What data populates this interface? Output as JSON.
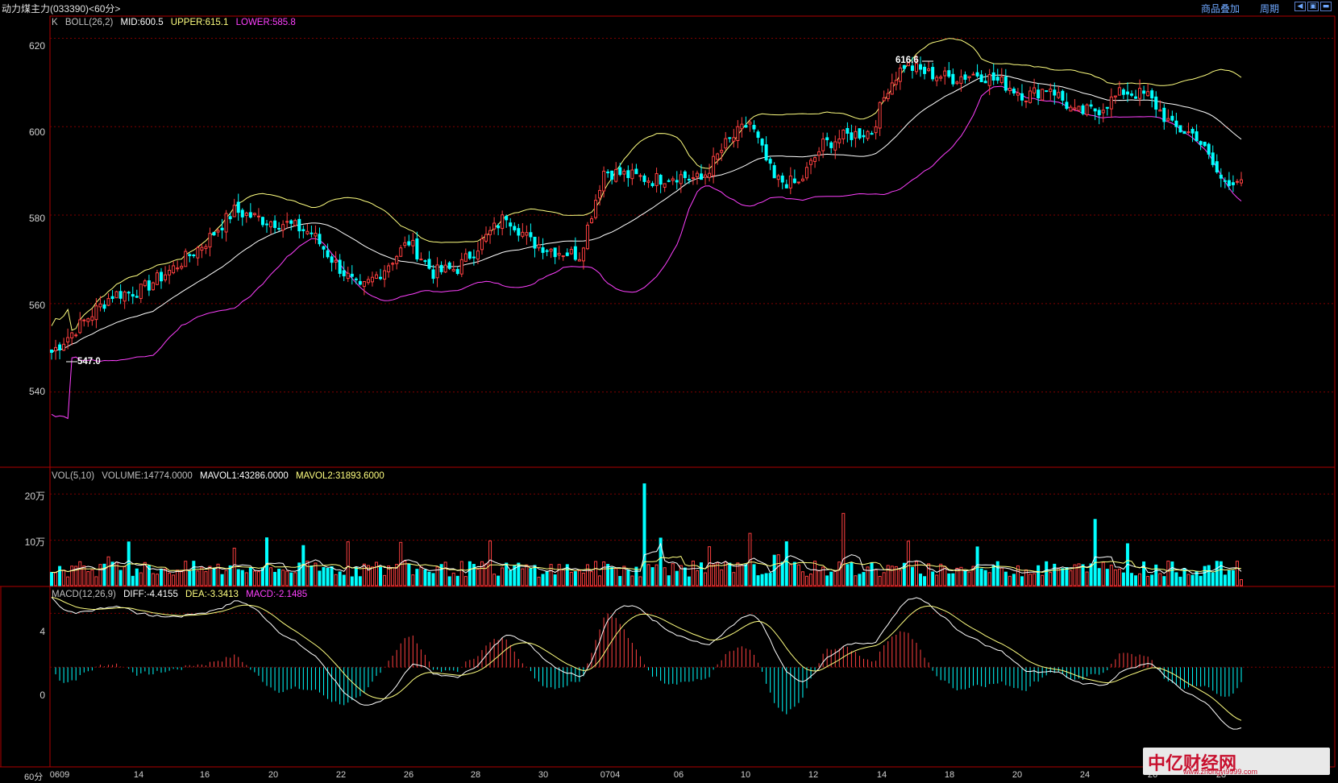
{
  "title": {
    "instrument": "动力煤主力",
    "code": "(033390)",
    "period": "<60分>"
  },
  "toolbar": {
    "overlay_label": "商品叠加",
    "period_label": "周期"
  },
  "colors": {
    "up": "#ff4040",
    "down": "#00ffff",
    "mid": "#ffffff",
    "upper": "#ffff80",
    "lower": "#ff40ff",
    "grid": "#800000",
    "frame": "#b00000"
  },
  "main_panel": {
    "k_label": "K",
    "boll_label": "BOLL(26,2)",
    "mid": "MID:600.5",
    "upper": "UPPER:615.1",
    "lower": "LOWER:585.8",
    "high_marker": "616.6",
    "low_marker": "547.0"
  },
  "volume_panel": {
    "label": "VOL(5,10)",
    "volume": "VOLUME:14774.0000",
    "mavol1": "MAVOL1:43286.0000",
    "mavol2": "MAVOL2:31893.6000",
    "tick_20": "20万",
    "tick_10": "10万"
  },
  "macd_panel": {
    "label": "MACD(12,26,9)",
    "diff": "DIFF:-4.4155",
    "dea": "DEA:-3.3413",
    "macd": "MACD:-2.1485",
    "tick_4": "4",
    "tick_0": "0"
  },
  "price_ticks": [
    "620",
    "600",
    "580",
    "560",
    "540"
  ],
  "x_axis": {
    "period_label": "60分",
    "ticks": [
      "0609",
      "14",
      "16",
      "20",
      "22",
      "26",
      "28",
      "30",
      "0704",
      "06",
      "10",
      "12",
      "14",
      "18",
      "20",
      "24",
      "26",
      "28"
    ]
  },
  "watermark": {
    "text": "中亿财经网",
    "url": "www.zhongyi9999.com"
  },
  "chart_data": {
    "type": "candlestick",
    "price_range": [
      523,
      625
    ],
    "anchor_prices": [
      [
        0,
        549
      ],
      [
        8,
        556
      ],
      [
        15,
        562
      ],
      [
        22,
        563
      ],
      [
        30,
        568
      ],
      [
        38,
        574
      ],
      [
        45,
        581
      ],
      [
        52,
        579
      ],
      [
        58,
        578
      ],
      [
        64,
        576
      ],
      [
        70,
        569
      ],
      [
        76,
        563
      ],
      [
        82,
        568
      ],
      [
        88,
        574
      ],
      [
        94,
        567
      ],
      [
        100,
        568
      ],
      [
        106,
        574
      ],
      [
        112,
        580
      ],
      [
        118,
        574
      ],
      [
        124,
        572
      ],
      [
        130,
        571
      ],
      [
        136,
        590
      ],
      [
        142,
        589
      ],
      [
        148,
        588
      ],
      [
        154,
        589
      ],
      [
        160,
        588
      ],
      [
        166,
        596
      ],
      [
        172,
        601
      ],
      [
        178,
        588
      ],
      [
        184,
        587
      ],
      [
        190,
        596
      ],
      [
        196,
        598
      ],
      [
        202,
        599
      ],
      [
        206,
        609
      ],
      [
        210,
        614
      ],
      [
        216,
        612
      ],
      [
        222,
        611
      ],
      [
        228,
        612
      ],
      [
        234,
        610
      ],
      [
        240,
        607
      ],
      [
        246,
        609
      ],
      [
        252,
        603
      ],
      [
        258,
        604
      ],
      [
        264,
        608
      ],
      [
        270,
        607
      ],
      [
        276,
        600
      ],
      [
        282,
        598
      ],
      [
        288,
        588
      ],
      [
        292,
        588
      ]
    ],
    "last_close": 588,
    "boll_last": {
      "mid": 600.5,
      "upper": 615.1,
      "lower": 585.8
    },
    "volume_range": [
      0,
      230000
    ],
    "volume_last": 14774,
    "macd_range": [
      -7.4,
      6.0
    ],
    "macd_last": {
      "diff": -4.4155,
      "dea": -3.3413,
      "macd": -2.1485
    }
  }
}
